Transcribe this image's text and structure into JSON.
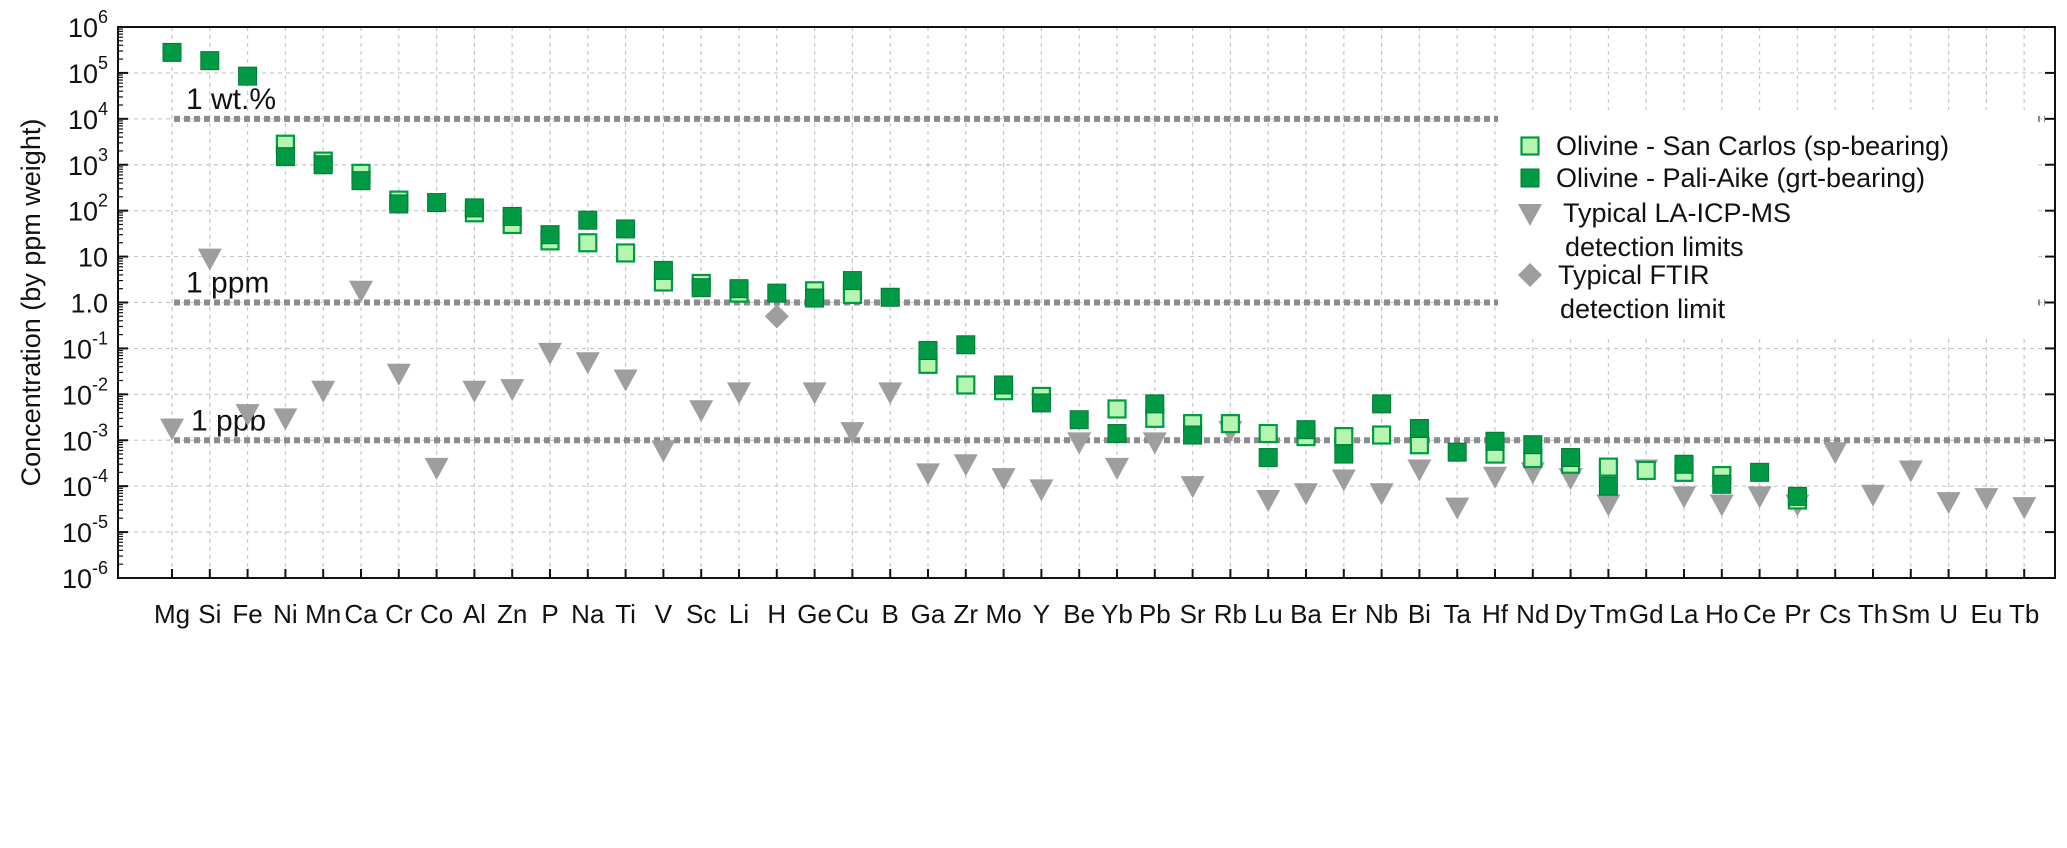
{
  "chart_data": {
    "type": "scatter",
    "ylabel": "Concentration (by ppm weight)",
    "xlabel": "",
    "yscale": "log",
    "ylim": [
      1e-06,
      1000000
    ],
    "grid": true,
    "legend_placement": "top-right",
    "categories": [
      "Mg",
      "Si",
      "Fe",
      "Ni",
      "Mn",
      "Ca",
      "Cr",
      "Co",
      "Al",
      "Zn",
      "P",
      "Na",
      "Ti",
      "V",
      "Sc",
      "Li",
      "H",
      "Ge",
      "Cu",
      "B",
      "Ga",
      "Zr",
      "Mo",
      "Y",
      "Be",
      "Yb",
      "Pb",
      "Sr",
      "Rb",
      "Lu",
      "Ba",
      "Er",
      "Nb",
      "Bi",
      "Ta",
      "Hf",
      "Nd",
      "Dy",
      "Tm",
      "Gd",
      "La",
      "Ho",
      "Ce",
      "Pr",
      "Cs",
      "Th",
      "Sm",
      "U",
      "Eu",
      "Tb"
    ],
    "y_ticks": [
      {
        "base": "10",
        "exp": "6",
        "value": 1000000
      },
      {
        "base": "10",
        "exp": "5",
        "value": 100000
      },
      {
        "base": "10",
        "exp": "4",
        "value": 10000
      },
      {
        "base": "10",
        "exp": "3",
        "value": 1000
      },
      {
        "base": "10",
        "exp": "2",
        "value": 100
      },
      {
        "base": "10",
        "exp": "",
        "value": 10
      },
      {
        "base": "1.0",
        "exp": "",
        "value": 1
      },
      {
        "base": "10",
        "exp": "-1",
        "value": 0.1
      },
      {
        "base": "10",
        "exp": "-2",
        "value": 0.01
      },
      {
        "base": "10",
        "exp": "-3",
        "value": 0.001
      },
      {
        "base": "10",
        "exp": "-4",
        "value": 0.0001
      },
      {
        "base": "10",
        "exp": "-5",
        "value": 1e-05
      },
      {
        "base": "10",
        "exp": "-6",
        "value": 1e-06
      }
    ],
    "reference_lines": [
      {
        "label": "1 wt.%",
        "value": 10000
      },
      {
        "label": "1 ppm",
        "value": 1
      },
      {
        "label": "1 ppb",
        "value": 0.001
      }
    ],
    "series": [
      {
        "name": "Olivine - San Carlos (sp-bearing)",
        "marker": "square-open",
        "color": "#b6f5b0",
        "edge": "#009a44",
        "points": [
          [
            "Ni",
            2800
          ],
          [
            "Mn",
            1200
          ],
          [
            "Ca",
            650
          ],
          [
            "Cr",
            170
          ],
          [
            "Al",
            90
          ],
          [
            "Zn",
            50
          ],
          [
            "P",
            22
          ],
          [
            "Na",
            20
          ],
          [
            "Ti",
            12
          ],
          [
            "V",
            2.8
          ],
          [
            "Sc",
            2.6
          ],
          [
            "Li",
            1.6
          ],
          [
            "Ge",
            1.8
          ],
          [
            "Cu",
            1.5
          ],
          [
            "Ga",
            0.045
          ],
          [
            "Zr",
            0.016
          ],
          [
            "Mo",
            0.012
          ],
          [
            "Y",
            0.009
          ],
          [
            "Yb",
            0.0048
          ],
          [
            "Pb",
            0.003
          ],
          [
            "Sr",
            0.0023
          ],
          [
            "Rb",
            0.0023
          ],
          [
            "Lu",
            0.0014
          ],
          [
            "Ba",
            0.0012
          ],
          [
            "Er",
            0.0012
          ],
          [
            "Nb",
            0.0013
          ],
          [
            "Bi",
            0.0008
          ],
          [
            "Hf",
            0.0005
          ],
          [
            "Nd",
            0.0004
          ],
          [
            "Dy",
            0.0003
          ],
          [
            "Tm",
            0.00026
          ],
          [
            "Gd",
            0.00022
          ],
          [
            "La",
            0.0002
          ],
          [
            "Ho",
            0.00017
          ],
          [
            "Pr",
            5e-05
          ]
        ]
      },
      {
        "name": "Olivine - Pali-Aike (grt-bearing)",
        "marker": "square-filled",
        "color": "#009a44",
        "points": [
          [
            "Mg",
            280000
          ],
          [
            "Si",
            185000
          ],
          [
            "Fe",
            85000
          ],
          [
            "Ni",
            1500
          ],
          [
            "Mn",
            1000
          ],
          [
            "Ca",
            450
          ],
          [
            "Cr",
            140
          ],
          [
            "Co",
            150
          ],
          [
            "Al",
            115
          ],
          [
            "Zn",
            75
          ],
          [
            "P",
            30
          ],
          [
            "Na",
            62
          ],
          [
            "Ti",
            40
          ],
          [
            "V",
            5
          ],
          [
            "Sc",
            2.1
          ],
          [
            "Li",
            2
          ],
          [
            "H",
            1.6
          ],
          [
            "Ge",
            1.25
          ],
          [
            "Cu",
            3
          ],
          [
            "B",
            1.3
          ],
          [
            "Ga",
            0.09
          ],
          [
            "Zr",
            0.12
          ],
          [
            "Mo",
            0.016
          ],
          [
            "Y",
            0.0065
          ],
          [
            "Be",
            0.0028
          ],
          [
            "Yb",
            0.0014
          ],
          [
            "Pb",
            0.0062
          ],
          [
            "Sr",
            0.0013
          ],
          [
            "Lu",
            0.00042
          ],
          [
            "Ba",
            0.0017
          ],
          [
            "Er",
            0.0005
          ],
          [
            "Nb",
            0.0062
          ],
          [
            "Bi",
            0.0018
          ],
          [
            "Ta",
            0.00055
          ],
          [
            "Hf",
            0.00095
          ],
          [
            "Nd",
            0.0008
          ],
          [
            "Dy",
            0.00042
          ],
          [
            "Tm",
            0.0001
          ],
          [
            "La",
            0.0003
          ],
          [
            "Ho",
            0.00011
          ],
          [
            "Ce",
            0.0002
          ],
          [
            "Pr",
            6e-05
          ]
        ]
      },
      {
        "name": "Typical LA-ICP-MS detection limits",
        "marker": "triangle-down",
        "color": "#9e9e9e",
        "points": [
          [
            "Mg",
            0.0018
          ],
          [
            "Si",
            9
          ],
          [
            "Fe",
            0.0037
          ],
          [
            "Ni",
            0.003
          ],
          [
            "Mn",
            0.012
          ],
          [
            "Ca",
            1.8
          ],
          [
            "Cr",
            0.028
          ],
          [
            "Co",
            0.00025
          ],
          [
            "Al",
            0.012
          ],
          [
            "Zn",
            0.013
          ],
          [
            "P",
            0.08
          ],
          [
            "Na",
            0.05
          ],
          [
            "Ti",
            0.021
          ],
          [
            "V",
            0.0006
          ],
          [
            "Sc",
            0.0045
          ],
          [
            "Li",
            0.011
          ],
          [
            "Ge",
            0.011
          ],
          [
            "Cu",
            0.0015
          ],
          [
            "B",
            0.011
          ],
          [
            "Ga",
            0.00019
          ],
          [
            "Zr",
            0.0003
          ],
          [
            "Mo",
            0.00015
          ],
          [
            "Y",
            8.5e-05
          ],
          [
            "Be",
            0.0009
          ],
          [
            "Yb",
            0.00025
          ],
          [
            "Pb",
            0.0009
          ],
          [
            "Sr",
            0.0001
          ],
          [
            "Rb",
            0.0016
          ],
          [
            "Lu",
            5e-05
          ],
          [
            "Ba",
            7e-05
          ],
          [
            "Er",
            0.00014
          ],
          [
            "Nb",
            7e-05
          ],
          [
            "Bi",
            0.00023
          ],
          [
            "Ta",
            3.4e-05
          ],
          [
            "Hf",
            0.00016
          ],
          [
            "Nd",
            0.0002
          ],
          [
            "Dy",
            0.00015
          ],
          [
            "Tm",
            4e-05
          ],
          [
            "Gd",
            0.00023
          ],
          [
            "La",
            6e-05
          ],
          [
            "Ho",
            4e-05
          ],
          [
            "Ce",
            6e-05
          ],
          [
            "Pr",
            4e-05
          ],
          [
            "Cs",
            0.00055
          ],
          [
            "Th",
            6.5e-05
          ],
          [
            "Sm",
            0.00022
          ],
          [
            "U",
            4.5e-05
          ],
          [
            "Eu",
            5.5e-05
          ],
          [
            "Tb",
            3.5e-05
          ]
        ]
      },
      {
        "name": "Typical FTIR detection limit",
        "marker": "diamond",
        "color": "#9e9e9e",
        "points": [
          [
            "H",
            0.5
          ]
        ]
      }
    ],
    "legend": [
      {
        "lines": [
          "Olivine - San Carlos (sp-bearing)"
        ],
        "marker": "square-open"
      },
      {
        "lines": [
          "Olivine - Pali-Aike (grt-bearing)"
        ],
        "marker": "square-filled"
      },
      {
        "lines": [
          "Typical LA-ICP-MS",
          "detection limits"
        ],
        "marker": "triangle-down"
      },
      {
        "lines": [
          "Typical FTIR",
          "detection limit"
        ],
        "marker": "diamond"
      }
    ]
  }
}
